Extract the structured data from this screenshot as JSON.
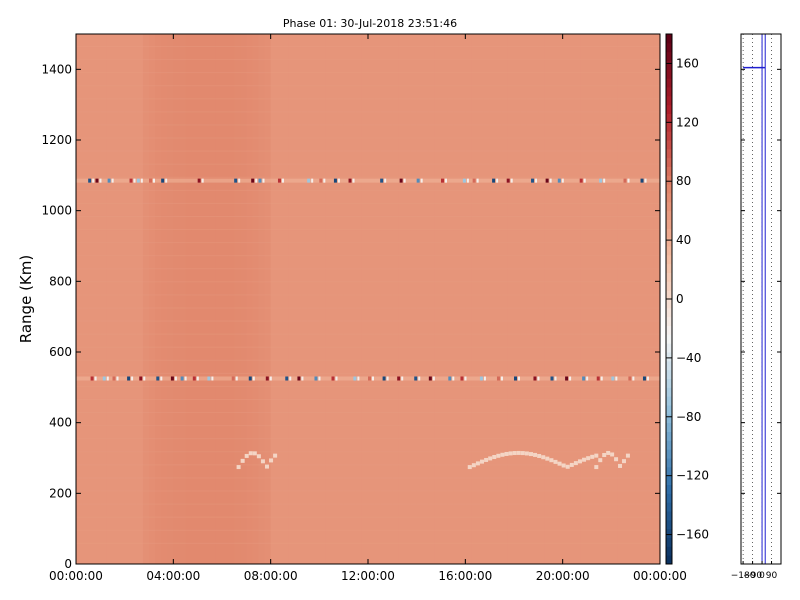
{
  "chart_data": [
    {
      "type": "heatmap",
      "title": "Phase 01: 30-Jul-2018 23:51:46",
      "xlabel": "",
      "ylabel": "Range (Km)",
      "x_tick_labels": [
        "00:00:00",
        "04:00:00",
        "08:00:00",
        "12:00:00",
        "16:00:00",
        "20:00:00",
        "00:00:00"
      ],
      "x_tick_hours": [
        0,
        4,
        8,
        12,
        16,
        20,
        24
      ],
      "xlim_hours": [
        0,
        24
      ],
      "y_ticks": [
        0,
        200,
        400,
        600,
        800,
        1000,
        1200,
        1400
      ],
      "ylim": [
        0,
        1500
      ],
      "colorbar": {
        "ticks": [
          160,
          120,
          80,
          40,
          0,
          -40,
          -80,
          -120,
          -160
        ],
        "range": [
          -180,
          180
        ],
        "colormap": [
          "#0a2e5c",
          "#2f6ea8",
          "#8fbedb",
          "#f5f5f5",
          "#f4c0a5",
          "#e08368",
          "#b01f2b",
          "#5a0016"
        ]
      },
      "background": {
        "base_value": 62,
        "darker_band_hours": [
          2.8,
          8.0
        ],
        "darker_band_value": 72
      },
      "interference_rows": [
        {
          "range_km": 1085,
          "hours": [
            0.5,
            0.8,
            1.3,
            2.2,
            2.5,
            3.0,
            3.5,
            5.0,
            6.5,
            7.2,
            7.5,
            8.3,
            9.5,
            10.0,
            10.6,
            11.2,
            12.5,
            13.3,
            14.0,
            15.0,
            15.9,
            16.3,
            17.1,
            17.7,
            18.7,
            19.3,
            19.8,
            20.7,
            21.5,
            22.5,
            23.2
          ]
        },
        {
          "range_km": 525,
          "hours": [
            0.6,
            1.1,
            1.5,
            2.1,
            2.6,
            3.3,
            3.9,
            4.3,
            4.8,
            5.4,
            6.4,
            7.1,
            7.8,
            8.6,
            9.1,
            9.8,
            10.5,
            11.4,
            12.0,
            12.6,
            13.2,
            13.9,
            14.5,
            15.3,
            15.8,
            16.6,
            17.3,
            18.0,
            18.8,
            19.5,
            20.1,
            20.8,
            21.4,
            22.0,
            22.7,
            23.3
          ]
        }
      ],
      "white_patches_km": [
        280,
        320
      ],
      "white_patch_hours": [
        [
          6.6,
          8.1
        ],
        [
          16.1,
          21.3
        ],
        [
          21.3,
          22.6
        ]
      ]
    },
    {
      "type": "line",
      "title": "",
      "x_tick_labels": [
        "-180",
        "-90",
        "0",
        "90"
      ],
      "x_ticks": [
        -180,
        -90,
        0,
        90
      ],
      "xlim": [
        -200,
        180
      ],
      "ylim": [
        0,
        1500
      ],
      "vertical_lines_x": [
        0,
        30
      ],
      "dotted_lines_x": [
        -180,
        -90,
        0,
        90
      ],
      "marker_y": 1405
    }
  ]
}
